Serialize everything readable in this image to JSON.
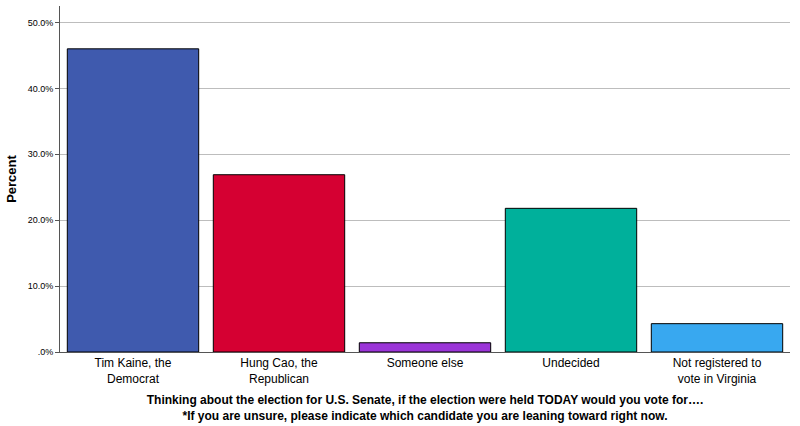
{
  "chart_data": {
    "type": "bar",
    "categories": [
      "Tim Kaine, the\nDemocrat",
      "Hung Cao, the\nRepublican",
      "Someone else",
      "Undecided",
      "Not registered to\nvote in Virginia"
    ],
    "values": [
      46.0,
      26.9,
      1.4,
      21.8,
      4.3
    ],
    "colors": [
      "#3f5aae",
      "#d50032",
      "#9b35d8",
      "#00b09b",
      "#38a8f0"
    ],
    "x_label": "Thinking about the election for U.S. Senate, if the election were held TODAY would you vote for….\n*If you are unsure, please indicate which candidate you are leaning toward right now.",
    "y_label": "Percent",
    "ylim": [
      0,
      52.5
    ],
    "yticks": [
      {
        "value": 0,
        "label": ".0%"
      },
      {
        "value": 10,
        "label": "10.0%"
      },
      {
        "value": 20,
        "label": "20.0%"
      },
      {
        "value": 30,
        "label": "30.0%"
      },
      {
        "value": 40,
        "label": "40.0%"
      },
      {
        "value": 50,
        "label": "50.0%"
      }
    ],
    "grid": true
  }
}
